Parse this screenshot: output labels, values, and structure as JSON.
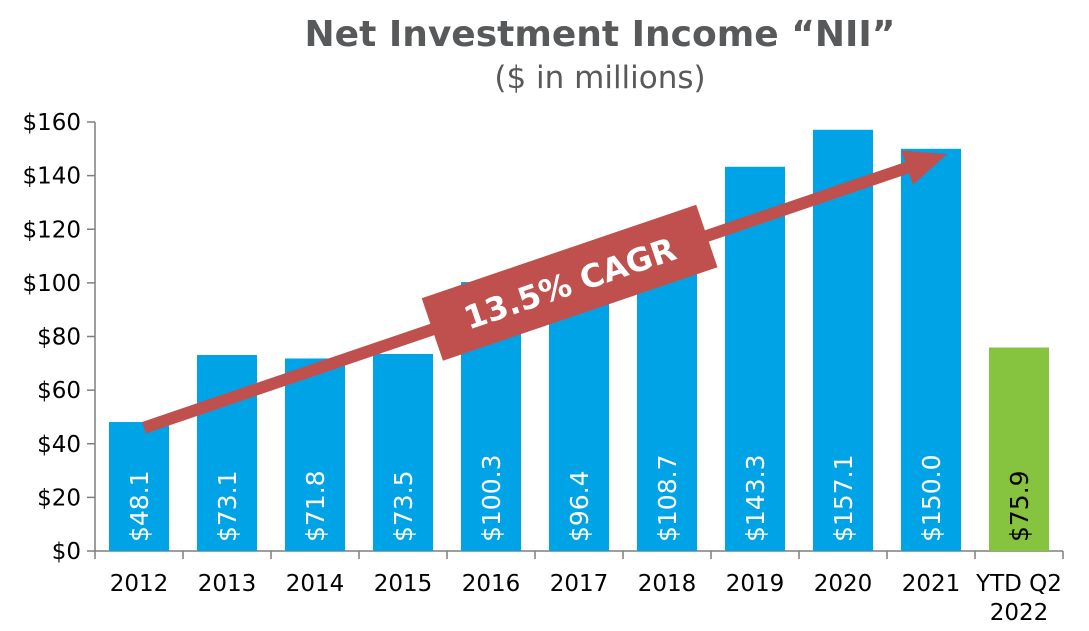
{
  "chart_data": {
    "type": "bar",
    "title": "Net Investment Income “NII”",
    "subtitle": "($ in millions)",
    "xlabel": "",
    "ylabel": "",
    "categories": [
      "2012",
      "2013",
      "2014",
      "2015",
      "2016",
      "2017",
      "2018",
      "2019",
      "2020",
      "2021",
      "YTD Q2 2022"
    ],
    "category_lines": [
      [
        "2012"
      ],
      [
        "2013"
      ],
      [
        "2014"
      ],
      [
        "2015"
      ],
      [
        "2016"
      ],
      [
        "2017"
      ],
      [
        "2018"
      ],
      [
        "2019"
      ],
      [
        "2020"
      ],
      [
        "2021"
      ],
      [
        "YTD Q2",
        "2022"
      ]
    ],
    "values": [
      48.1,
      73.1,
      71.8,
      73.5,
      100.3,
      96.4,
      108.7,
      143.3,
      157.1,
      150.0,
      75.9
    ],
    "data_labels": [
      "$48.1",
      "$73.1",
      "$71.8",
      "$73.5",
      "$100.3",
      "$96.4",
      "$108.7",
      "$143.3",
      "$157.1",
      "$150.0",
      "$75.9"
    ],
    "yticks": [
      0,
      20,
      40,
      60,
      80,
      100,
      120,
      140,
      160
    ],
    "ytick_labels": [
      "$0",
      "$20",
      "$40",
      "$60",
      "$80",
      "$100",
      "$120",
      "$140",
      "$160"
    ],
    "ylim": [
      0,
      160
    ],
    "grid": false,
    "bar_colors": [
      "#00a3e6",
      "#00a3e6",
      "#00a3e6",
      "#00a3e6",
      "#00a3e6",
      "#00a3e6",
      "#00a3e6",
      "#00a3e6",
      "#00a3e6",
      "#00a3e6",
      "#86c440"
    ],
    "label_colors": [
      "#ffffff",
      "#ffffff",
      "#ffffff",
      "#ffffff",
      "#ffffff",
      "#ffffff",
      "#ffffff",
      "#ffffff",
      "#ffffff",
      "#ffffff",
      "#000000"
    ],
    "annotation": {
      "text": "13.5% CAGR",
      "color": "#c0504d",
      "text_color": "#ffffff",
      "from": {
        "x": "2012",
        "y": 46
      },
      "to": {
        "x": "2021",
        "y": 148
      }
    },
    "axis_color": "#7f7f7f",
    "text_color": "#000000"
  }
}
